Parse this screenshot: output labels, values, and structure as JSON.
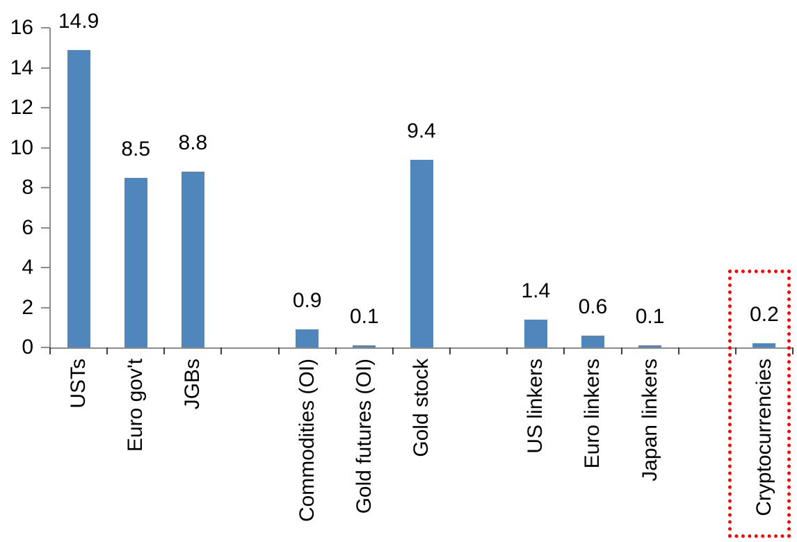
{
  "chart_data": {
    "type": "bar",
    "title": "",
    "xlabel": "",
    "ylabel": "",
    "categories": [
      "USTs",
      "Euro gov't",
      "JGBs",
      "",
      "Commodities (OI)",
      "Gold futures (OI)",
      "Gold stock",
      "",
      "US linkers",
      "Euro linkers",
      "Japan linkers",
      "",
      "Cryptocurrencies"
    ],
    "values": [
      14.9,
      8.5,
      8.8,
      null,
      0.9,
      0.1,
      9.4,
      null,
      1.4,
      0.6,
      0.1,
      null,
      0.2
    ],
    "value_labels": [
      "14.9",
      "8.5",
      "8.8",
      "0.9",
      "0.1",
      "9.4",
      "1.4",
      "0.6",
      "0.1",
      "0.2"
    ],
    "ylim": [
      0,
      16
    ],
    "yticks": [
      0,
      2,
      4,
      6,
      8,
      10,
      12,
      14,
      16
    ],
    "grid": false,
    "legend": false,
    "bar_color": "#4F86BC",
    "text_color": "#000000",
    "x_label_rotation_deg": 90,
    "highlight": {
      "category": "Cryptocurrencies",
      "style": "red-dotted-box",
      "color": "#FF0000"
    }
  }
}
